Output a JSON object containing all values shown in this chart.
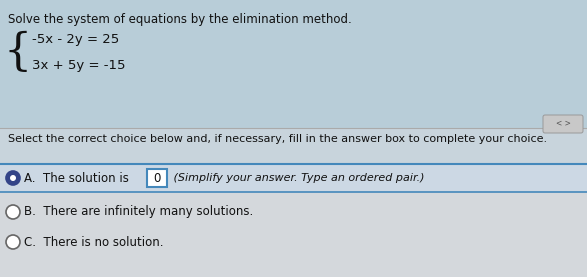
{
  "title": "Solve the system of equations by the elimination method.",
  "eq1": "-5x - 2y = 25",
  "eq2": "3x + 5y = -15",
  "separator_text": "Select the correct choice below and, if necessary, fill in the answer box to complete your choice.",
  "choice_A_text": "A.  The solution is",
  "choice_A_box": "0",
  "choice_A_suffix": " (Simplify your answer. Type an ordered pair.)",
  "choice_B_text": "B.  There are infinitely many solutions.",
  "choice_C_text": "C.  There is no solution.",
  "bg_color_top": "#b8cdd8",
  "bg_color_mid": "#c8d4dc",
  "bg_color_lower": "#d4d8dc",
  "bg_color_choiceA": "#ccd8e4",
  "text_color": "#111111",
  "line_color": "#aaaaaa",
  "blue_line_color": "#4488bb",
  "radio_fill_A": "#334488",
  "radio_border": "#666666",
  "box_border_color": "#4488bb",
  "title_fontsize": 8.5,
  "body_fontsize": 8.5,
  "eq_fontsize": 9.5
}
